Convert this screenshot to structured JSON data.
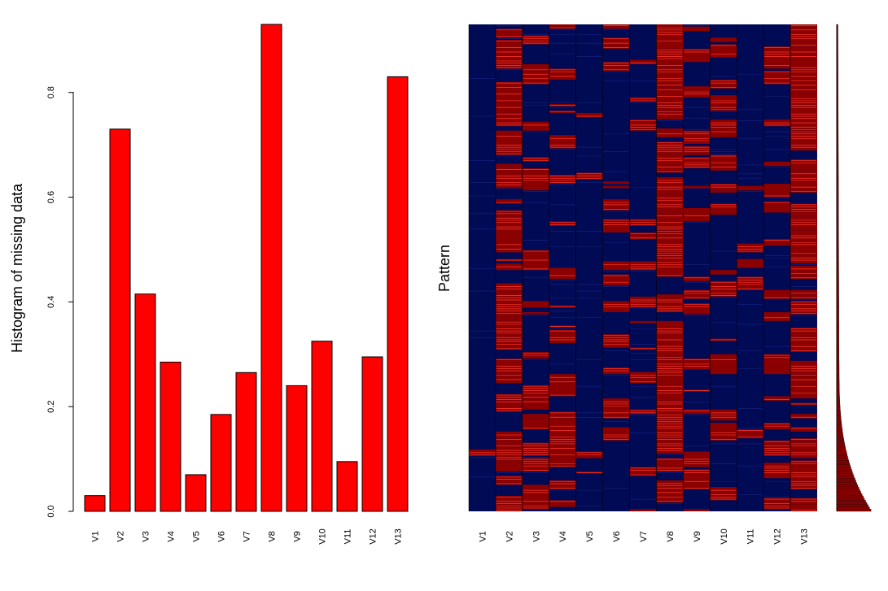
{
  "chart_data": [
    {
      "type": "bar",
      "ylabel": "Histogram of missing data",
      "categories": [
        "V1",
        "V2",
        "V3",
        "V4",
        "V5",
        "V6",
        "V7",
        "V8",
        "V9",
        "V10",
        "V11",
        "V12",
        "V13"
      ],
      "values": [
        0.03,
        0.73,
        0.415,
        0.285,
        0.07,
        0.185,
        0.265,
        0.93,
        0.24,
        0.325,
        0.095,
        0.295,
        0.83
      ],
      "ylim": [
        0,
        0.93
      ],
      "yticks": [
        0.0,
        0.2,
        0.4,
        0.6,
        0.8
      ],
      "ytick_labels": [
        "0.0",
        "0.2",
        "0.4",
        "0.6",
        "0.8"
      ],
      "bar_color": "#ff0000",
      "grid": false
    },
    {
      "type": "heatmap",
      "ylabel": "Pattern",
      "columns": [
        "V1",
        "V2",
        "V3",
        "V4",
        "V5",
        "V6",
        "V7",
        "V8",
        "V9",
        "V10",
        "V11",
        "V12",
        "V13"
      ],
      "missing_rate": [
        0.03,
        0.73,
        0.415,
        0.285,
        0.07,
        0.185,
        0.265,
        0.93,
        0.24,
        0.325,
        0.095,
        0.295,
        0.83
      ],
      "colors": {
        "observed": "#000a55",
        "missing": "#8b0000",
        "highlight": "#ff3b2f"
      }
    },
    {
      "type": "bar",
      "orientation": "horizontal",
      "description_source": "pattern frequency side histogram",
      "bar_color": "#8b0000"
    }
  ]
}
